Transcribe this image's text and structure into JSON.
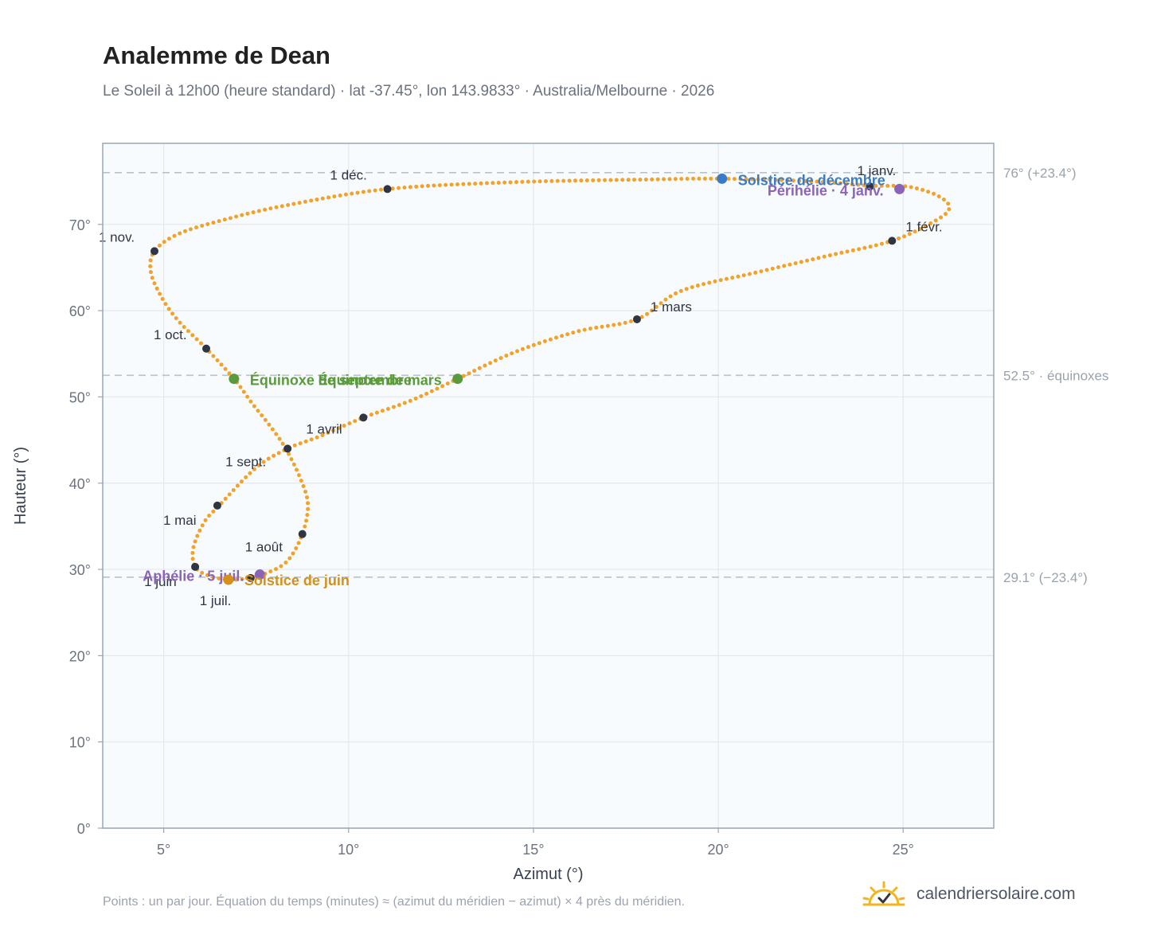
{
  "chart_data": {
    "type": "scatter",
    "title": "Analemme de Dean",
    "subtitle": "Le Soleil à 12h00 (heure standard) · lat -37.45°, lon 143.9833° · Australia/Melbourne · 2026",
    "xlabel": "Azimut (°)",
    "ylabel": "Hauteur (°)",
    "xlim": [
      3.35,
      27.45
    ],
    "ylim": [
      0,
      79.4
    ],
    "xticks": [
      5,
      10,
      15,
      20,
      25
    ],
    "xtick_labels": [
      "5°",
      "10°",
      "15°",
      "20°",
      "25°"
    ],
    "yticks": [
      0,
      10,
      20,
      30,
      40,
      50,
      60,
      70
    ],
    "ytick_labels": [
      "0°",
      "10°",
      "20°",
      "30°",
      "40°",
      "50°",
      "60°",
      "70°"
    ],
    "grid": true,
    "reference_lines": [
      {
        "y": 76.0,
        "label": "76° (+23.4°)"
      },
      {
        "y": 52.5,
        "label": "52.5° · équinoxes"
      },
      {
        "y": 29.1,
        "label": "29.1° (−23.4°)"
      }
    ],
    "curve_points": [
      [
        24.1,
        74.5
      ],
      [
        25.1,
        74.4
      ],
      [
        25.9,
        73.4
      ],
      [
        26.25,
        72.0
      ],
      [
        25.9,
        70.5
      ],
      [
        24.7,
        68.1
      ],
      [
        23.0,
        66.4
      ],
      [
        21.0,
        64.4
      ],
      [
        19.0,
        62.3
      ],
      [
        17.8,
        59.0
      ],
      [
        16.2,
        57.6
      ],
      [
        14.5,
        55.2
      ],
      [
        12.95,
        52.1
      ],
      [
        11.7,
        49.6
      ],
      [
        10.4,
        47.6
      ],
      [
        9.2,
        45.4
      ],
      [
        8.35,
        44.0
      ],
      [
        7.5,
        41.8
      ],
      [
        6.5,
        37.4
      ],
      [
        6.1,
        35.5
      ],
      [
        5.8,
        32.5
      ],
      [
        5.85,
        30.3
      ],
      [
        6.2,
        29.3
      ],
      [
        6.75,
        28.8
      ],
      [
        7.3,
        29.0
      ],
      [
        7.8,
        29.6
      ],
      [
        8.35,
        31.0
      ],
      [
        8.75,
        34.1
      ],
      [
        8.9,
        37.5
      ],
      [
        8.7,
        40.5
      ],
      [
        8.3,
        44.0
      ],
      [
        7.9,
        46.5
      ],
      [
        7.4,
        49.2
      ],
      [
        6.9,
        52.1
      ],
      [
        6.15,
        55.6
      ],
      [
        5.4,
        58.8
      ],
      [
        4.95,
        61.5
      ],
      [
        4.65,
        64.5
      ],
      [
        4.75,
        66.9
      ],
      [
        5.4,
        68.9
      ],
      [
        6.6,
        70.5
      ],
      [
        8.3,
        72.2
      ],
      [
        11.05,
        74.1
      ],
      [
        14.5,
        74.9
      ],
      [
        18.0,
        75.2
      ],
      [
        20.1,
        75.3
      ],
      [
        22.5,
        75.0
      ],
      [
        24.1,
        74.5
      ]
    ],
    "month_markers": [
      {
        "label": "1 janv.",
        "x": 24.1,
        "y": 74.4
      },
      {
        "label": "1 févr.",
        "x": 24.7,
        "y": 68.1
      },
      {
        "label": "1 mars",
        "x": 17.8,
        "y": 59.0
      },
      {
        "label": "1 avril",
        "x": 10.4,
        "y": 47.6
      },
      {
        "label": "1 mai",
        "x": 6.45,
        "y": 37.4
      },
      {
        "label": "1 juin",
        "x": 5.85,
        "y": 30.3
      },
      {
        "label": "1 juil.",
        "x": 7.35,
        "y": 29.0
      },
      {
        "label": "1 août",
        "x": 8.75,
        "y": 34.1
      },
      {
        "label": "1 sept.",
        "x": 8.35,
        "y": 44.0
      },
      {
        "label": "1 oct.",
        "x": 6.15,
        "y": 55.6
      },
      {
        "label": "1 nov.",
        "x": 4.75,
        "y": 66.9
      },
      {
        "label": "1 déc.",
        "x": 11.05,
        "y": 74.1
      }
    ],
    "events": [
      {
        "label": "Solstice de décembre",
        "x": 20.1,
        "y": 75.3,
        "color": "#3a7bc8"
      },
      {
        "label": "Périhélie · 4 janv.",
        "x": 24.9,
        "y": 74.1,
        "color": "#8b65b5"
      },
      {
        "label": "Équinoxe de mars",
        "x": 12.95,
        "y": 52.1,
        "color": "#5a9a3a"
      },
      {
        "label": "Équinoxe de septembre",
        "x": 6.9,
        "y": 52.1,
        "color": "#5a9a3a"
      },
      {
        "label": "Aphélie · 5 juil.",
        "x": 7.6,
        "y": 29.4,
        "color": "#8b65b5"
      },
      {
        "label": "Solstice de juin",
        "x": 6.75,
        "y": 28.8,
        "color": "#d4901a"
      }
    ],
    "colors": {
      "curve": "#f2a22a",
      "month_marker": "#2f3542",
      "plot_bg": "#f8fbfd",
      "grid": "#e2e8ee",
      "frame": "#9aa7b5",
      "reference_line": "#b8c2cc"
    }
  },
  "footer": {
    "note": "Points : un par jour. Équation du temps (minutes) ≈ (azimut du méridien − azimut) × 4 près du méridien.",
    "brand": "calendriersolaire.com",
    "brand_icon": "sun-logo-icon"
  }
}
